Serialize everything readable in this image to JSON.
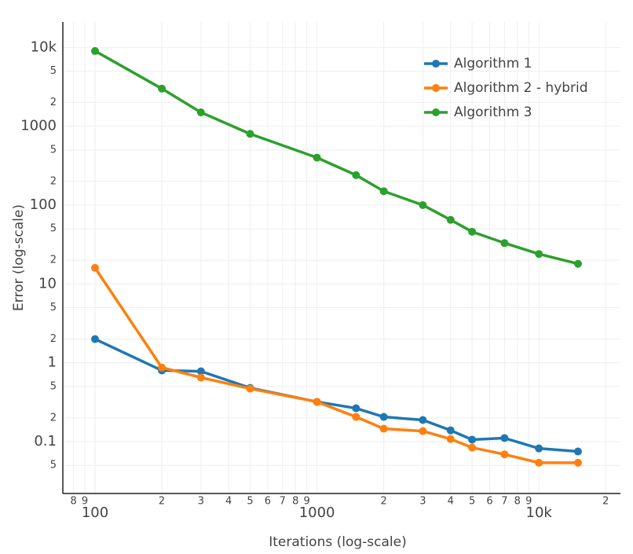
{
  "chart_data": {
    "type": "line",
    "x_label": "Iterations (log-scale)",
    "y_label": "Error (log-scale)",
    "x_log": true,
    "y_log": true,
    "grid": true,
    "legend": "top-right",
    "x": [
      100,
      200,
      300,
      500,
      1000,
      1500,
      2000,
      3000,
      4000,
      5000,
      7000,
      10000,
      15000
    ],
    "series": [
      {
        "name": "Algorithm 1",
        "color": "#1f77b4",
        "values": [
          2,
          0.8,
          0.78,
          0.48,
          0.32,
          0.265,
          0.206,
          0.188,
          0.139,
          0.106,
          0.111,
          0.082,
          0.075
        ]
      },
      {
        "name": "Algorithm 2 - hybrid",
        "color": "#ff7f0e",
        "values": [
          16,
          0.87,
          0.65,
          0.47,
          0.32,
          0.206,
          0.146,
          0.136,
          0.108,
          0.084,
          0.069,
          0.054,
          0.054
        ]
      },
      {
        "name": "Algorithm 3",
        "color": "#2ca02c",
        "values": [
          9000,
          3000,
          1500,
          800,
          400,
          240,
          150,
          100,
          65,
          46,
          33,
          24,
          18
        ]
      }
    ],
    "xlim": [
      71.6,
      23300
    ],
    "ylim": [
      0.022,
      21000
    ],
    "xticks": [
      {
        "value": 80,
        "label": "8"
      },
      {
        "value": 90,
        "label": "9"
      },
      100,
      {
        "value": 200,
        "label": "2"
      },
      {
        "value": 300,
        "label": "3"
      },
      {
        "value": 400,
        "label": "4"
      },
      {
        "value": 500,
        "label": "5"
      },
      {
        "value": 600,
        "label": "6"
      },
      {
        "value": 700,
        "label": "7"
      },
      {
        "value": 800,
        "label": "8"
      },
      {
        "value": 900,
        "label": "9"
      },
      1000,
      {
        "value": 2000,
        "label": "2"
      },
      {
        "value": 3000,
        "label": "3"
      },
      {
        "value": 4000,
        "label": "4"
      },
      {
        "value": 5000,
        "label": "5"
      },
      {
        "value": 6000,
        "label": "6"
      },
      {
        "value": 7000,
        "label": "7"
      },
      {
        "value": 8000,
        "label": "8"
      },
      {
        "value": 9000,
        "label": "9"
      },
      {
        "value": 10000,
        "label": "10k"
      },
      {
        "value": 20000,
        "label": "2"
      }
    ],
    "yticks": [
      {
        "value": 0.05,
        "label": "5"
      },
      0.1,
      {
        "value": 0.2,
        "label": "2"
      },
      {
        "value": 0.5,
        "label": "5"
      },
      1,
      {
        "value": 2,
        "label": "2"
      },
      {
        "value": 5,
        "label": "5"
      },
      10,
      {
        "value": 20,
        "label": "2"
      },
      {
        "value": 50,
        "label": "5"
      },
      100,
      {
        "value": 200,
        "label": "2"
      },
      {
        "value": 500,
        "label": "5"
      },
      1000,
      {
        "value": 2000,
        "label": "2"
      },
      {
        "value": 5000,
        "label": "5"
      },
      {
        "value": 10000,
        "label": "10k"
      }
    ]
  }
}
